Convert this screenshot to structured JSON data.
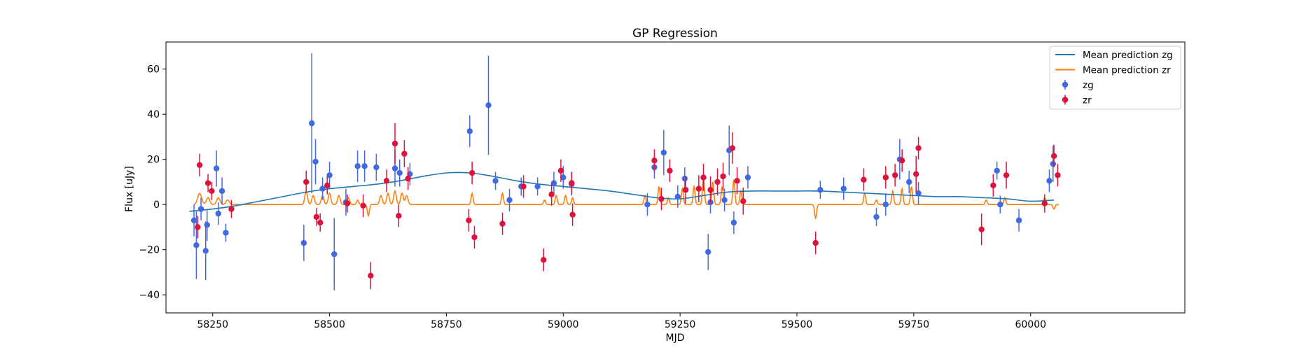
{
  "chart_data": {
    "type": "scatter",
    "title": "GP Regression",
    "xlabel": "MJD",
    "ylabel": "Flux [uJy]",
    "xlim": [
      58150,
      60330
    ],
    "ylim": [
      -48,
      72
    ],
    "xticks": [
      58250,
      58500,
      58750,
      59000,
      59250,
      59500,
      59750,
      60000
    ],
    "yticks": [
      -40,
      -20,
      0,
      20,
      40,
      60
    ],
    "legend_position": "upper-right",
    "colors": {
      "mean_zg": "#1f77b4",
      "mean_zr": "#ff7f0e",
      "zg": "#4169e1",
      "zr": "#dc143c"
    },
    "legend": [
      {
        "label": "Mean prediction zg",
        "kind": "line",
        "color_key": "mean_zg"
      },
      {
        "label": "Mean prediction zr",
        "kind": "line",
        "color_key": "mean_zr"
      },
      {
        "label": "zg",
        "kind": "errorbar",
        "color_key": "zg"
      },
      {
        "label": "zr",
        "kind": "errorbar",
        "color_key": "zr"
      }
    ],
    "mean_prediction_zg": {
      "name": "Mean prediction zg",
      "x": [
        58200,
        58250,
        58300,
        58350,
        58400,
        58450,
        58500,
        58550,
        58600,
        58650,
        58700,
        58750,
        58800,
        58850,
        58900,
        58950,
        59000,
        59050,
        59100,
        59150,
        59200,
        59250,
        59300,
        59350,
        59400,
        59450,
        59500,
        59550,
        59600,
        59650,
        59700,
        59750,
        59800,
        59850,
        59900,
        59950,
        60000,
        60050
      ],
      "y": [
        -3,
        -2,
        -0.5,
        1.5,
        3.5,
        5.5,
        7,
        8,
        9,
        10.5,
        12.5,
        14,
        14,
        12.5,
        10.5,
        9,
        8,
        7,
        6,
        4.5,
        3,
        2.5,
        4,
        5.5,
        6,
        6,
        6,
        6,
        5.5,
        5,
        4.5,
        4,
        3.5,
        3.5,
        3,
        2.5,
        1.5,
        2
      ]
    },
    "mean_prediction_zr": {
      "name": "Mean prediction zr",
      "baseline": 0,
      "x0": 58210,
      "x1": 60060,
      "features": [
        [
          58222,
          5,
          6
        ],
        [
          58240,
          3,
          5
        ],
        [
          58262,
          3,
          5
        ],
        [
          58282,
          2,
          5
        ],
        [
          58450,
          6,
          4
        ],
        [
          58465,
          4,
          4
        ],
        [
          58485,
          4,
          4
        ],
        [
          58500,
          5,
          4
        ],
        [
          58520,
          4,
          4
        ],
        [
          58540,
          3,
          4
        ],
        [
          58560,
          2,
          3
        ],
        [
          58583,
          -5,
          3
        ],
        [
          58610,
          4,
          4
        ],
        [
          58625,
          5,
          4
        ],
        [
          58640,
          6,
          4
        ],
        [
          58655,
          5,
          4
        ],
        [
          58665,
          4,
          4
        ],
        [
          58805,
          5,
          3
        ],
        [
          58870,
          5,
          3
        ],
        [
          58960,
          2,
          3
        ],
        [
          58985,
          4,
          3
        ],
        [
          59005,
          4,
          3
        ],
        [
          59020,
          3,
          3
        ],
        [
          59175,
          4,
          3
        ],
        [
          59205,
          8,
          3
        ],
        [
          59225,
          3,
          3
        ],
        [
          59255,
          7,
          3
        ],
        [
          59280,
          8,
          3
        ],
        [
          59300,
          12,
          3
        ],
        [
          59320,
          10,
          3
        ],
        [
          59340,
          8,
          3
        ],
        [
          59365,
          11,
          3
        ],
        [
          59380,
          6,
          3
        ],
        [
          59540,
          -6,
          3
        ],
        [
          59645,
          5,
          3
        ],
        [
          59670,
          2,
          3
        ],
        [
          59705,
          6,
          3
        ],
        [
          59725,
          7,
          3
        ],
        [
          59745,
          8,
          3
        ],
        [
          59905,
          2,
          3
        ],
        [
          59945,
          3,
          3
        ],
        [
          60030,
          3,
          3
        ],
        [
          60050,
          -2,
          3
        ]
      ]
    },
    "series": [
      {
        "name": "zg",
        "x": [
          58210,
          58215,
          58225,
          58235,
          58238,
          58258,
          58262,
          58270,
          58278,
          58445,
          58462,
          58470,
          58485,
          58500,
          58510,
          58535,
          58560,
          58575,
          58600,
          58640,
          58650,
          58672,
          58800,
          58840,
          58855,
          58885,
          58910,
          58945,
          58980,
          59000,
          59018,
          59180,
          59195,
          59215,
          59245,
          59260,
          59310,
          59315,
          59345,
          59355,
          59365,
          59395,
          59550,
          59600,
          59670,
          59690,
          59720,
          59740,
          59760,
          59928,
          59935,
          59975,
          60040,
          60048
        ],
        "y": [
          -7,
          -18,
          -2,
          -20.5,
          -9,
          16,
          -4,
          6,
          -12.5,
          -17,
          36,
          19,
          7,
          13,
          -22,
          1,
          17,
          17,
          16.5,
          16,
          14,
          13.5,
          32.5,
          44,
          10.5,
          2,
          8,
          8,
          9.5,
          12,
          9,
          0,
          16.5,
          23,
          3.5,
          11.5,
          -21,
          1,
          2,
          24,
          -8,
          12,
          6.5,
          7,
          -5.5,
          0,
          20,
          10,
          5,
          15,
          0,
          -7,
          10.5,
          18
        ],
        "err": [
          7,
          15,
          5,
          13,
          7,
          8,
          5,
          6,
          4,
          8,
          31,
          10,
          5,
          6,
          16,
          6,
          7,
          7,
          6,
          8,
          6,
          5,
          7,
          22,
          4,
          5,
          4,
          4,
          5,
          5,
          5,
          5,
          5,
          10,
          5,
          5,
          8,
          5,
          5,
          11,
          5,
          5,
          4,
          5,
          4,
          5,
          9,
          5,
          5,
          4,
          4,
          5,
          5,
          8
        ]
      },
      {
        "name": "zr",
        "x": [
          58218,
          58222,
          58240,
          58248,
          58290,
          58450,
          58472,
          58480,
          58495,
          58538,
          58572,
          58588,
          58622,
          58640,
          58648,
          58660,
          58668,
          58798,
          58805,
          58810,
          58870,
          58915,
          58958,
          58975,
          58995,
          59018,
          59020,
          59195,
          59210,
          59228,
          59262,
          59290,
          59300,
          59315,
          59330,
          59342,
          59362,
          59372,
          59385,
          59540,
          59643,
          59690,
          59710,
          59725,
          59755,
          59760,
          59895,
          59920,
          59948,
          60030,
          60050,
          60058
        ],
        "y": [
          -10,
          17.5,
          9.5,
          6,
          -2,
          10,
          -5.5,
          -8,
          8.5,
          0.5,
          -0.5,
          -31.5,
          10.5,
          27,
          -5,
          22.5,
          11.5,
          -7,
          14,
          -14.5,
          -8.5,
          8,
          -24.5,
          4.5,
          15,
          9.5,
          -4.5,
          19.5,
          2.5,
          15,
          6.5,
          7,
          12,
          6.5,
          10,
          12.5,
          25,
          10.5,
          1.5,
          -17,
          11,
          12,
          13,
          19.5,
          13.5,
          25,
          -11,
          8.5,
          13,
          0.5,
          21.5,
          13
        ],
        "err": [
          5,
          5,
          4,
          4,
          4,
          5,
          4,
          4,
          4,
          4,
          5,
          6,
          5,
          9,
          5,
          6,
          5,
          5,
          5,
          5,
          5,
          5,
          5,
          5,
          5,
          5,
          5,
          5,
          5,
          5,
          6,
          6,
          6,
          6,
          6,
          6,
          7,
          6,
          6,
          5,
          5,
          5,
          5,
          5,
          8,
          5,
          7,
          5,
          6,
          4,
          5,
          5
        ]
      }
    ]
  }
}
